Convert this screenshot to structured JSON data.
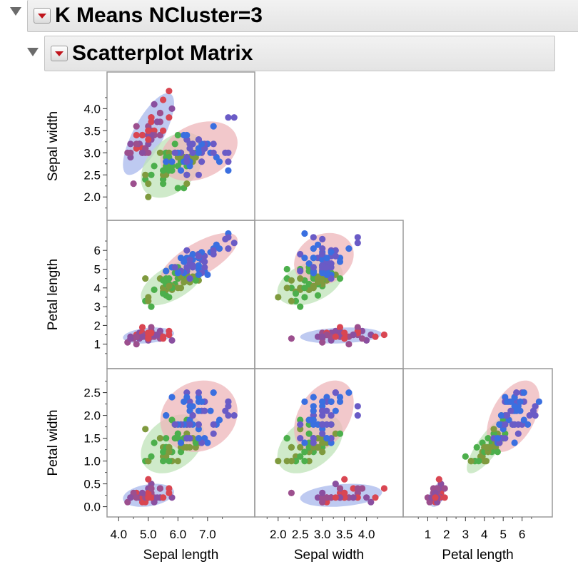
{
  "header": {
    "outer_title": "K Means NCluster=3",
    "inner_title": "Scatterplot Matrix"
  },
  "chart_data": {
    "type": "scatter",
    "variables": [
      "Sepal length",
      "Sepal width",
      "Petal length",
      "Petal width"
    ],
    "layout": "lower-triangle",
    "grid": false,
    "axes": {
      "Sepal length": {
        "range": [
          3.8,
          8.4
        ],
        "ticks": [
          4.0,
          5.0,
          6.0,
          7.0
        ],
        "tick_labels": [
          "4.0",
          "5.0",
          "6.0",
          "7.0"
        ]
      },
      "Sepal width": {
        "range": [
          1.6,
          4.7
        ],
        "ticks": [
          2.0,
          2.5,
          3.0,
          3.5,
          4.0
        ],
        "tick_labels": [
          "2.0",
          "2.5",
          "3.0",
          "3.5",
          "4.0"
        ]
      },
      "Petal length": {
        "range": [
          0,
          7.3
        ],
        "ticks": [
          1,
          2,
          3,
          4,
          5,
          6
        ],
        "tick_labels": [
          "1",
          "2",
          "3",
          "4",
          "5",
          "6"
        ]
      },
      "Petal width": {
        "range": [
          -0.1,
          2.9
        ],
        "ticks": [
          0.0,
          0.5,
          1.0,
          1.5,
          2.0,
          2.5
        ],
        "tick_labels": [
          "0.0",
          "0.5",
          "1.0",
          "1.5",
          "2.0",
          "2.5"
        ]
      }
    },
    "series": [
      {
        "cluster": 1,
        "colors": {
          "points": [
            "#d94652",
            "#9c4f8e",
            "#8a4fa0"
          ],
          "ellipse": "#a8b8ec"
        },
        "points": [
          [
            5.1,
            3.5,
            1.4,
            0.2
          ],
          [
            4.9,
            3.0,
            1.4,
            0.2
          ],
          [
            4.7,
            3.2,
            1.3,
            0.2
          ],
          [
            4.6,
            3.1,
            1.5,
            0.2
          ],
          [
            5.0,
            3.6,
            1.4,
            0.2
          ],
          [
            5.4,
            3.9,
            1.7,
            0.4
          ],
          [
            4.6,
            3.4,
            1.4,
            0.3
          ],
          [
            5.0,
            3.4,
            1.5,
            0.2
          ],
          [
            4.4,
            2.9,
            1.4,
            0.2
          ],
          [
            4.9,
            3.1,
            1.5,
            0.1
          ],
          [
            5.4,
            3.7,
            1.5,
            0.2
          ],
          [
            4.8,
            3.4,
            1.6,
            0.2
          ],
          [
            4.8,
            3.0,
            1.4,
            0.1
          ],
          [
            4.3,
            3.0,
            1.1,
            0.1
          ],
          [
            5.8,
            4.0,
            1.2,
            0.2
          ],
          [
            5.7,
            4.4,
            1.5,
            0.4
          ],
          [
            5.4,
            3.9,
            1.3,
            0.4
          ],
          [
            5.1,
            3.5,
            1.4,
            0.3
          ],
          [
            5.7,
            3.8,
            1.7,
            0.3
          ],
          [
            5.1,
            3.8,
            1.5,
            0.3
          ],
          [
            5.4,
            3.4,
            1.7,
            0.2
          ],
          [
            5.1,
            3.7,
            1.5,
            0.4
          ],
          [
            4.6,
            3.6,
            1.0,
            0.2
          ],
          [
            5.1,
            3.3,
            1.7,
            0.5
          ],
          [
            4.8,
            3.4,
            1.9,
            0.2
          ],
          [
            5.0,
            3.0,
            1.6,
            0.2
          ],
          [
            5.0,
            3.4,
            1.6,
            0.4
          ],
          [
            5.2,
            3.5,
            1.5,
            0.2
          ],
          [
            5.2,
            3.4,
            1.4,
            0.2
          ],
          [
            4.7,
            3.2,
            1.6,
            0.2
          ],
          [
            4.8,
            3.1,
            1.6,
            0.2
          ],
          [
            5.4,
            3.4,
            1.5,
            0.4
          ],
          [
            5.2,
            4.1,
            1.5,
            0.1
          ],
          [
            5.5,
            4.2,
            1.4,
            0.2
          ],
          [
            4.9,
            3.1,
            1.5,
            0.2
          ],
          [
            5.0,
            3.2,
            1.2,
            0.2
          ],
          [
            5.5,
            3.5,
            1.3,
            0.2
          ],
          [
            4.4,
            3.0,
            1.3,
            0.2
          ],
          [
            5.1,
            3.4,
            1.5,
            0.2
          ],
          [
            5.0,
            3.5,
            1.3,
            0.3
          ],
          [
            4.5,
            2.3,
            1.3,
            0.3
          ],
          [
            4.4,
            3.2,
            1.3,
            0.2
          ],
          [
            5.0,
            3.5,
            1.6,
            0.6
          ],
          [
            5.1,
            3.8,
            1.9,
            0.4
          ],
          [
            4.8,
            3.0,
            1.4,
            0.3
          ],
          [
            5.1,
            3.8,
            1.6,
            0.2
          ],
          [
            4.6,
            3.2,
            1.4,
            0.2
          ],
          [
            5.3,
            3.7,
            1.5,
            0.2
          ],
          [
            5.0,
            3.3,
            1.4,
            0.2
          ]
        ]
      },
      {
        "cluster": 2,
        "colors": {
          "points": [
            "#4caf4c",
            "#7f9a3e"
          ],
          "ellipse": "#bfe3b8"
        },
        "points": [
          [
            5.5,
            2.3,
            4.0,
            1.3
          ],
          [
            6.5,
            2.8,
            4.6,
            1.5
          ],
          [
            5.7,
            2.8,
            4.5,
            1.3
          ],
          [
            6.3,
            3.3,
            4.7,
            1.6
          ],
          [
            4.9,
            2.4,
            3.3,
            1.0
          ],
          [
            6.6,
            2.9,
            4.6,
            1.3
          ],
          [
            5.2,
            2.7,
            3.9,
            1.4
          ],
          [
            5.0,
            2.0,
            3.5,
            1.0
          ],
          [
            5.9,
            3.0,
            4.2,
            1.5
          ],
          [
            6.0,
            2.2,
            4.0,
            1.0
          ],
          [
            5.6,
            2.9,
            3.6,
            1.3
          ],
          [
            6.7,
            3.1,
            4.4,
            1.4
          ],
          [
            5.6,
            3.0,
            4.5,
            1.5
          ],
          [
            5.8,
            2.7,
            4.1,
            1.0
          ],
          [
            6.2,
            2.2,
            4.5,
            1.5
          ],
          [
            5.6,
            2.5,
            3.9,
            1.1
          ],
          [
            5.9,
            3.2,
            4.8,
            1.8
          ],
          [
            6.1,
            2.8,
            4.0,
            1.3
          ],
          [
            6.1,
            2.8,
            4.7,
            1.2
          ],
          [
            6.4,
            2.9,
            4.3,
            1.3
          ],
          [
            6.6,
            3.0,
            4.4,
            1.4
          ],
          [
            6.0,
            2.9,
            4.5,
            1.5
          ],
          [
            5.7,
            2.6,
            3.5,
            1.0
          ],
          [
            5.5,
            2.4,
            3.8,
            1.1
          ],
          [
            5.5,
            2.4,
            3.7,
            1.0
          ],
          [
            5.8,
            2.7,
            3.9,
            1.2
          ],
          [
            6.0,
            2.7,
            5.1,
            1.6
          ],
          [
            5.4,
            3.0,
            4.5,
            1.5
          ],
          [
            6.0,
            3.4,
            4.5,
            1.6
          ],
          [
            6.3,
            2.3,
            4.4,
            1.3
          ],
          [
            5.6,
            3.0,
            4.1,
            1.3
          ],
          [
            5.5,
            2.5,
            4.0,
            1.3
          ],
          [
            5.5,
            2.6,
            4.4,
            1.2
          ],
          [
            6.1,
            3.0,
            4.6,
            1.4
          ],
          [
            5.8,
            2.6,
            4.0,
            1.2
          ],
          [
            5.0,
            2.3,
            3.3,
            1.0
          ],
          [
            5.6,
            2.7,
            4.2,
            1.3
          ],
          [
            5.7,
            3.0,
            4.2,
            1.2
          ],
          [
            5.7,
            2.9,
            4.2,
            1.3
          ],
          [
            6.2,
            2.9,
            4.3,
            1.3
          ],
          [
            5.1,
            2.5,
            3.0,
            1.1
          ],
          [
            5.7,
            2.8,
            4.1,
            1.3
          ],
          [
            5.8,
            2.7,
            5.1,
            1.9
          ],
          [
            4.9,
            2.5,
            4.5,
            1.7
          ],
          [
            6.0,
            2.2,
            5.0,
            1.5
          ],
          [
            5.6,
            2.8,
            4.9,
            2.0
          ],
          [
            6.3,
            2.7,
            4.9,
            1.8
          ],
          [
            6.1,
            3.0,
            4.9,
            1.8
          ],
          [
            6.3,
            2.5,
            5.0,
            1.9
          ],
          [
            5.9,
            3.0,
            5.1,
            1.8
          ]
        ]
      },
      {
        "cluster": 3,
        "colors": {
          "points": [
            "#3a6fe0",
            "#6a5bc6"
          ],
          "ellipse": "#eeb6b9"
        },
        "points": [
          [
            7.0,
            3.2,
            4.7,
            1.4
          ],
          [
            6.4,
            3.2,
            4.5,
            1.5
          ],
          [
            6.9,
            3.1,
            4.9,
            1.5
          ],
          [
            6.3,
            2.5,
            4.9,
            1.5
          ],
          [
            6.7,
            3.0,
            5.0,
            1.7
          ],
          [
            6.8,
            2.8,
            4.8,
            1.4
          ],
          [
            6.7,
            3.1,
            4.7,
            1.5
          ],
          [
            6.3,
            3.3,
            6.0,
            2.5
          ],
          [
            7.1,
            3.0,
            5.9,
            2.1
          ],
          [
            6.3,
            2.9,
            5.6,
            1.8
          ],
          [
            6.5,
            3.0,
            5.8,
            2.2
          ],
          [
            7.6,
            3.0,
            6.6,
            2.1
          ],
          [
            7.3,
            2.9,
            6.3,
            1.8
          ],
          [
            6.7,
            2.5,
            5.8,
            1.8
          ],
          [
            7.2,
            3.6,
            6.1,
            2.5
          ],
          [
            6.5,
            3.2,
            5.1,
            2.0
          ],
          [
            6.4,
            2.7,
            5.3,
            1.9
          ],
          [
            6.8,
            3.0,
            5.5,
            2.1
          ],
          [
            5.8,
            2.8,
            5.1,
            2.4
          ],
          [
            6.4,
            3.2,
            5.3,
            2.3
          ],
          [
            6.5,
            3.0,
            5.5,
            1.8
          ],
          [
            7.7,
            3.8,
            6.7,
            2.2
          ],
          [
            7.7,
            2.6,
            6.9,
            2.3
          ],
          [
            6.9,
            3.2,
            5.7,
            2.3
          ],
          [
            5.6,
            2.8,
            4.9,
            2.0
          ],
          [
            7.7,
            2.8,
            6.7,
            2.0
          ],
          [
            6.7,
            3.3,
            5.7,
            2.1
          ],
          [
            7.2,
            3.2,
            6.0,
            1.8
          ],
          [
            6.2,
            2.8,
            4.8,
            1.8
          ],
          [
            6.1,
            3.0,
            4.9,
            1.8
          ],
          [
            6.4,
            2.8,
            5.6,
            2.1
          ],
          [
            7.2,
            3.0,
            5.8,
            1.6
          ],
          [
            7.4,
            2.8,
            6.1,
            1.9
          ],
          [
            7.9,
            3.8,
            6.4,
            2.0
          ],
          [
            6.4,
            2.8,
            5.6,
            2.2
          ],
          [
            6.3,
            2.8,
            5.1,
            1.5
          ],
          [
            6.1,
            2.6,
            5.6,
            1.4
          ],
          [
            7.7,
            3.0,
            6.1,
            2.3
          ],
          [
            6.3,
            3.4,
            5.6,
            2.4
          ],
          [
            6.4,
            3.1,
            5.5,
            1.8
          ],
          [
            6.0,
            3.0,
            4.8,
            1.8
          ],
          [
            6.9,
            3.1,
            5.4,
            2.1
          ],
          [
            6.7,
            3.1,
            5.6,
            2.4
          ],
          [
            6.9,
            3.1,
            5.1,
            2.3
          ],
          [
            6.8,
            3.2,
            5.9,
            2.3
          ],
          [
            6.7,
            3.3,
            5.7,
            2.5
          ],
          [
            6.7,
            3.0,
            5.2,
            2.3
          ],
          [
            6.5,
            3.0,
            5.2,
            2.0
          ],
          [
            6.2,
            3.4,
            5.4,
            2.3
          ],
          [
            5.9,
            3.0,
            5.1,
            1.8
          ]
        ]
      }
    ]
  }
}
